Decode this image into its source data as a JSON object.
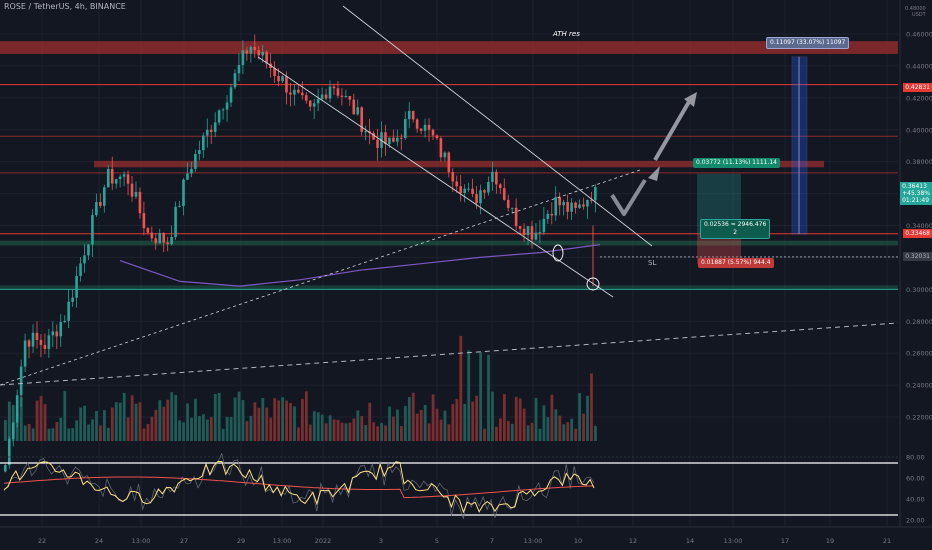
{
  "header": {
    "symbol": "ROSE / TetherUS, 4h, BINANCE",
    "axis_top_price": "0.48000",
    "axis_unit": "USDT"
  },
  "annotations": {
    "ath_label": "ATH res",
    "sl_label": "SL",
    "target_badge": "0.11097 (33.07%) 11097",
    "tp_badge": "0.03772 (11.13%) 1111.14",
    "info_badge_line1": "0.02536 ≈ 2946.476",
    "info_badge_line2": "2",
    "sl_badge": "0.01887 (5.57%) 944.4"
  },
  "price_tags": {
    "level_4283": "0.42831",
    "current_price": "0.36413",
    "current_change": "+45.38%",
    "current_timer": "01:21:49",
    "level_3348": "0.33468",
    "level_3203": "0.32031"
  },
  "colors": {
    "background": "#131722",
    "up": "#26a69a",
    "down": "#ef5350",
    "resistance_zone": "#8e2c2c",
    "support_zone": "#1f5f4a",
    "ma_line": "#7e57c2",
    "rsi_line": "#ffe082",
    "rsi_ma": "#ef5350",
    "target_box": "#2962ff"
  },
  "chart_data": [
    {
      "type": "candlestick",
      "title": "ROSE / TetherUS, 4h, BINANCE",
      "ylim": [
        0.21,
        0.47
      ],
      "y_ticks": [
        "0.46000",
        "0.44000",
        "0.42000",
        "0.40000",
        "0.38000",
        "0.36000",
        "0.34000",
        "0.32000",
        "0.30000",
        "0.28000",
        "0.26000",
        "0.24000",
        "0.22000"
      ],
      "x_ticks": [
        "22",
        "24",
        "13:00",
        "27",
        "29",
        "13:00",
        "2022",
        "3",
        "5",
        "7",
        "13:00",
        "10",
        "12",
        "14",
        "13:00",
        "17",
        "19",
        "21"
      ],
      "horizontal_levels": [
        0.4283,
        0.4015,
        0.3959,
        0.373,
        0.3348,
        0.3203,
        0.3
      ],
      "resistance_zones": [
        [
          0.4475,
          0.4555
        ],
        [
          0.3765,
          0.3805
        ]
      ],
      "support_zones": [
        [
          0.3275,
          0.3305
        ],
        [
          0.3,
          0.3025
        ]
      ],
      "current_price": 0.36413,
      "key_prices": [
        0.19,
        0.27,
        0.265,
        0.285,
        0.33,
        0.37,
        0.37,
        0.335,
        0.33,
        0.375,
        0.4,
        0.425,
        0.4535,
        0.44,
        0.425,
        0.41,
        0.43,
        0.415,
        0.395,
        0.39,
        0.41,
        0.395,
        0.373,
        0.355,
        0.375,
        0.345,
        0.335,
        0.355,
        0.348,
        0.364
      ],
      "long_position": {
        "entry": 0.33468,
        "take_profit": 0.3724,
        "stop_loss": 0.3158,
        "target": 0.4457
      }
    },
    {
      "type": "line",
      "title": "RSI",
      "ylim": [
        15,
        85
      ],
      "y_ticks": [
        "80.00",
        "60.00",
        "40.00",
        "20.00"
      ],
      "series": []
    }
  ]
}
